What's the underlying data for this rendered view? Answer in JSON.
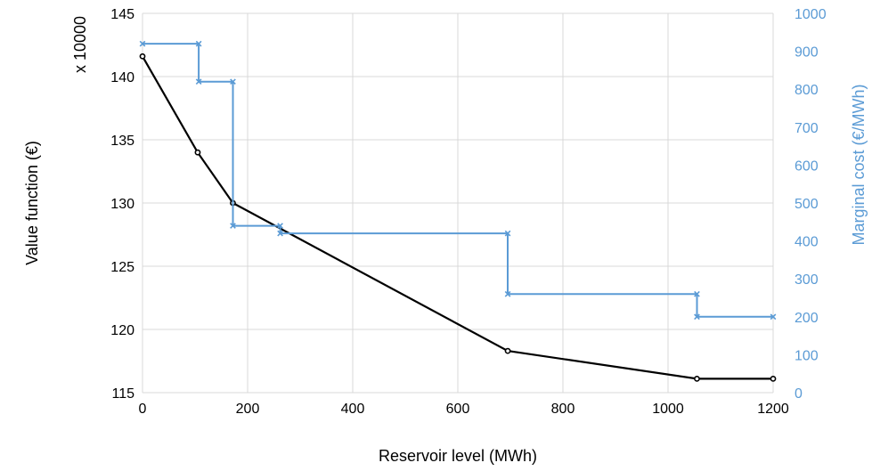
{
  "chart_data": {
    "type": "line",
    "xlabel": "Reservoir level (MWh)",
    "ylabel": "Value function (€)",
    "ylabel_multiplier": "x 10000",
    "y2label": "Marginal cost (€/MWh)",
    "xlim": [
      0,
      1200
    ],
    "ylim": [
      115,
      145
    ],
    "y2lim": [
      0,
      1000
    ],
    "x_ticks": [
      "0",
      "200",
      "400",
      "600",
      "800",
      "1000",
      "1200"
    ],
    "y_ticks": [
      "115",
      "120",
      "125",
      "130",
      "135",
      "140",
      "145"
    ],
    "y2_ticks": [
      "0",
      "100",
      "200",
      "300",
      "400",
      "500",
      "600",
      "700",
      "800",
      "900",
      "1000"
    ],
    "grid": true,
    "legend": "none",
    "colors": {
      "value_function": "#000000",
      "marginal_cost": "#5b9bd5"
    },
    "series": [
      {
        "axis": "left",
        "marker": "circle",
        "x": [
          0,
          105,
          172,
          695,
          1055,
          1200
        ],
        "y": [
          141.6,
          134,
          130,
          118.3,
          116.1,
          116.1
        ]
      },
      {
        "axis": "right",
        "marker": "x",
        "step": true,
        "x": [
          0,
          107,
          107,
          172,
          172,
          262,
          262,
          695,
          695,
          1055,
          1055,
          1200
        ],
        "y": [
          920,
          920,
          820,
          820,
          440,
          440,
          420,
          420,
          260,
          260,
          200,
          200
        ]
      }
    ]
  }
}
